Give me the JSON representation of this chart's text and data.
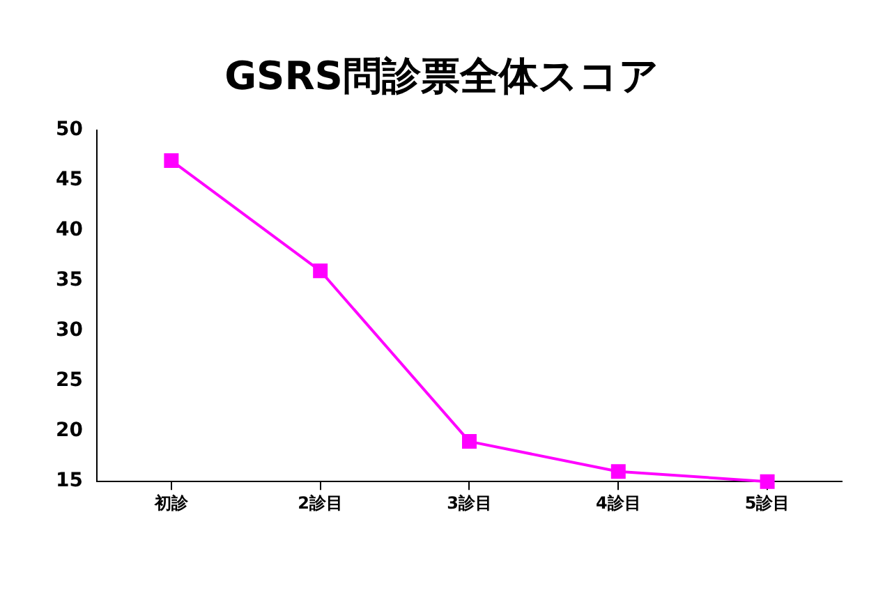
{
  "chart_data": {
    "type": "line",
    "title": "GSRS問診票全体スコア",
    "categories": [
      "初診",
      "2診目",
      "3診目",
      "4診目",
      "5診目"
    ],
    "series": [
      {
        "color": "#ff00ff",
        "values": [
          47,
          36,
          19,
          16,
          15
        ]
      }
    ],
    "ylim": [
      15,
      50
    ],
    "yticks": [
      15,
      20,
      25,
      30,
      35,
      40,
      45,
      50
    ],
    "grid": false,
    "legend": false,
    "marker": "square",
    "line_style": "solid"
  }
}
